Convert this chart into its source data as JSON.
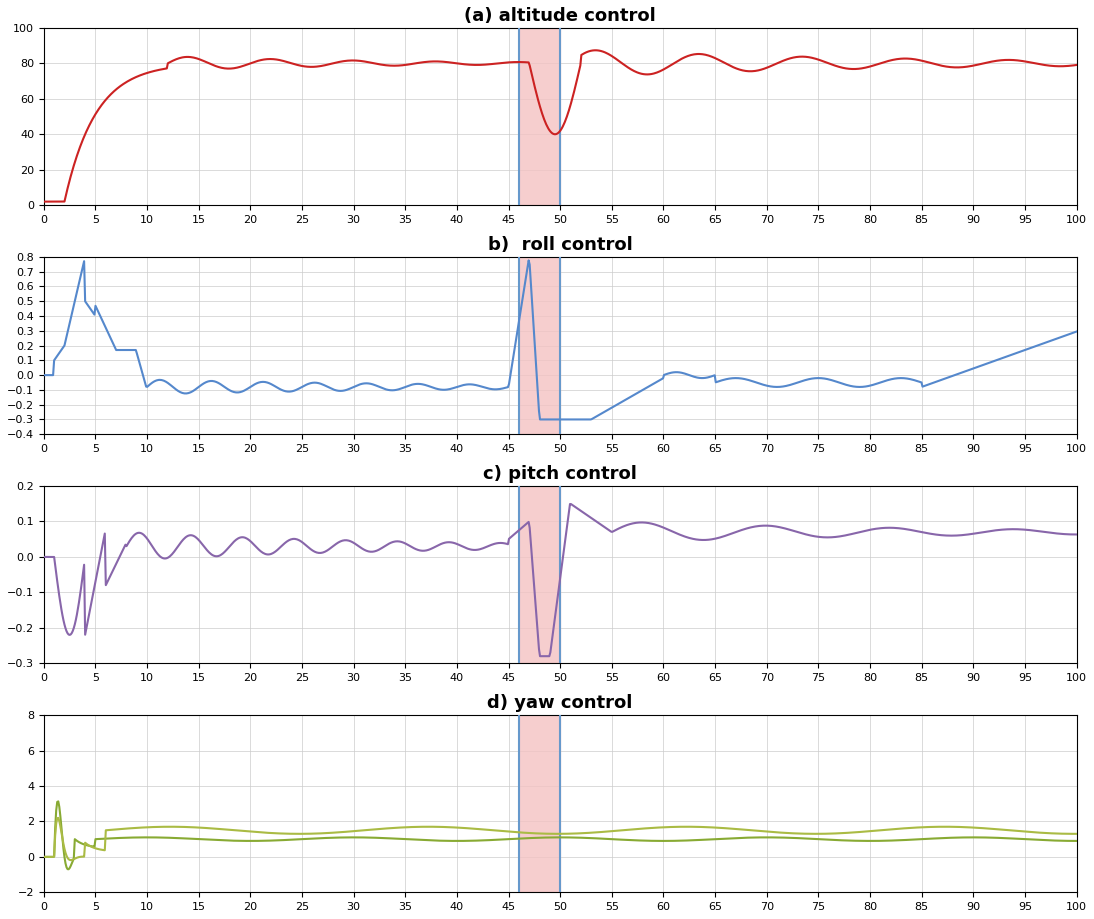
{
  "title_a": "(a) altitude control",
  "title_b": "b)  roll control",
  "title_c": "c) pitch control",
  "title_d": "d) yaw control",
  "xlim": [
    0,
    100
  ],
  "xticks": [
    0,
    5,
    10,
    15,
    20,
    25,
    30,
    35,
    40,
    45,
    50,
    55,
    60,
    65,
    70,
    75,
    80,
    85,
    90,
    95,
    100
  ],
  "fault_x_start": 46,
  "fault_x_end": 50,
  "fault_color": "#f4c2c2",
  "fault_border_color": "#6699cc",
  "color_a": "#cc2222",
  "color_b": "#5588cc",
  "color_c": "#8866aa",
  "color_d_1": "#88aa33",
  "color_d_2": "#aabb44",
  "ylim_a": [
    0,
    100
  ],
  "yticks_a": [
    0,
    20,
    40,
    60,
    80,
    100
  ],
  "ylim_b": [
    -0.4,
    0.8
  ],
  "yticks_b": [
    -0.4,
    -0.3,
    -0.2,
    -0.1,
    0.0,
    0.1,
    0.2,
    0.3,
    0.4,
    0.5,
    0.6,
    0.7,
    0.8
  ],
  "ylim_c": [
    -0.3,
    0.2
  ],
  "yticks_c": [
    -0.3,
    -0.2,
    -0.1,
    0.0,
    0.1,
    0.2
  ],
  "ylim_d": [
    -2,
    8
  ],
  "yticks_d": [
    -2,
    0,
    2,
    4,
    6,
    8
  ],
  "background_color": "#ffffff",
  "grid_color": "#cccccc"
}
